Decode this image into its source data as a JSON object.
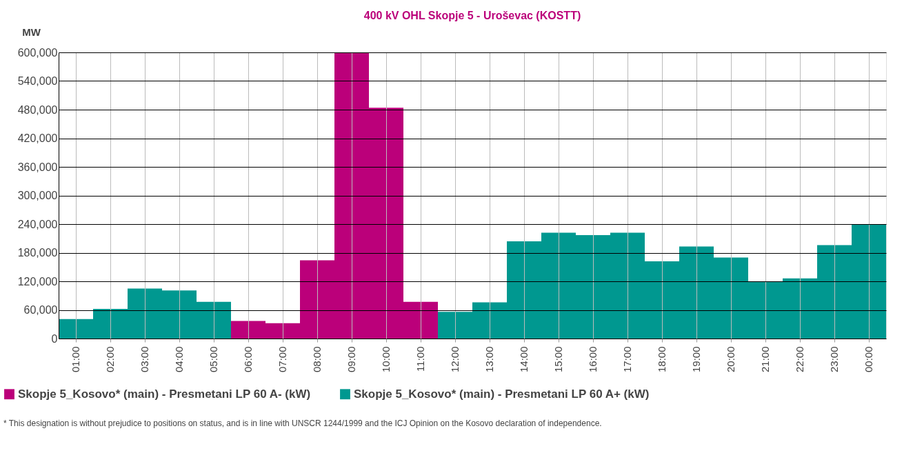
{
  "chart_data": {
    "type": "bar",
    "title": "400 kV OHL Skopje 5 - Uroševac (KOSTT)",
    "ylabel": "MW",
    "categories": [
      "01:00",
      "02:00",
      "03:00",
      "04:00",
      "05:00",
      "06:00",
      "07:00",
      "08:00",
      "09:00",
      "10:00",
      "11:00",
      "12:00",
      "13:00",
      "14:00",
      "15:00",
      "16:00",
      "17:00",
      "18:00",
      "19:00",
      "20:00",
      "21:00",
      "22:00",
      "23:00",
      "00:00"
    ],
    "series": [
      {
        "name": "Skopje 5_Kosovo* (main) - Presmetani LP 60 A- (kW)",
        "color": "#bb007a",
        "values": [
          null,
          null,
          null,
          null,
          null,
          37000,
          32000,
          164000,
          600000,
          484000,
          77000,
          null,
          null,
          null,
          null,
          null,
          null,
          null,
          null,
          null,
          null,
          null,
          null,
          null
        ]
      },
      {
        "name": "Skopje 5_Kosovo* (main) - Presmetani LP 60 A+ (kW)",
        "color": "#009890",
        "values": [
          41000,
          62000,
          105000,
          101000,
          77000,
          null,
          null,
          null,
          null,
          null,
          null,
          56000,
          76000,
          204000,
          222000,
          217000,
          222000,
          162000,
          193000,
          170000,
          119000,
          126000,
          196000,
          240000
        ]
      }
    ],
    "ylim": [
      0,
      600000
    ],
    "yticks": [
      0,
      {
        "value": 60000,
        "label": "60,000"
      },
      {
        "value": 120000,
        "label": "120,000"
      },
      {
        "value": 180000,
        "label": "180,000"
      },
      {
        "value": 240000,
        "label": "240,000"
      },
      {
        "value": 300000,
        "label": "300,000"
      },
      {
        "value": 360000,
        "label": "360,000"
      },
      {
        "value": 420000,
        "label": "420,000"
      },
      {
        "value": 480000,
        "label": "480,000"
      },
      {
        "value": 540000,
        "label": "540,000"
      },
      {
        "value": 600000,
        "label": "600,000"
      }
    ],
    "grid": true,
    "legend": "bottom left",
    "annotations": [
      "* This designation is without prejudice to positions on status, and is in line with UNSCR 1244/1999 and the ICJ Opinion on the Kosovo declaration of independence."
    ]
  }
}
